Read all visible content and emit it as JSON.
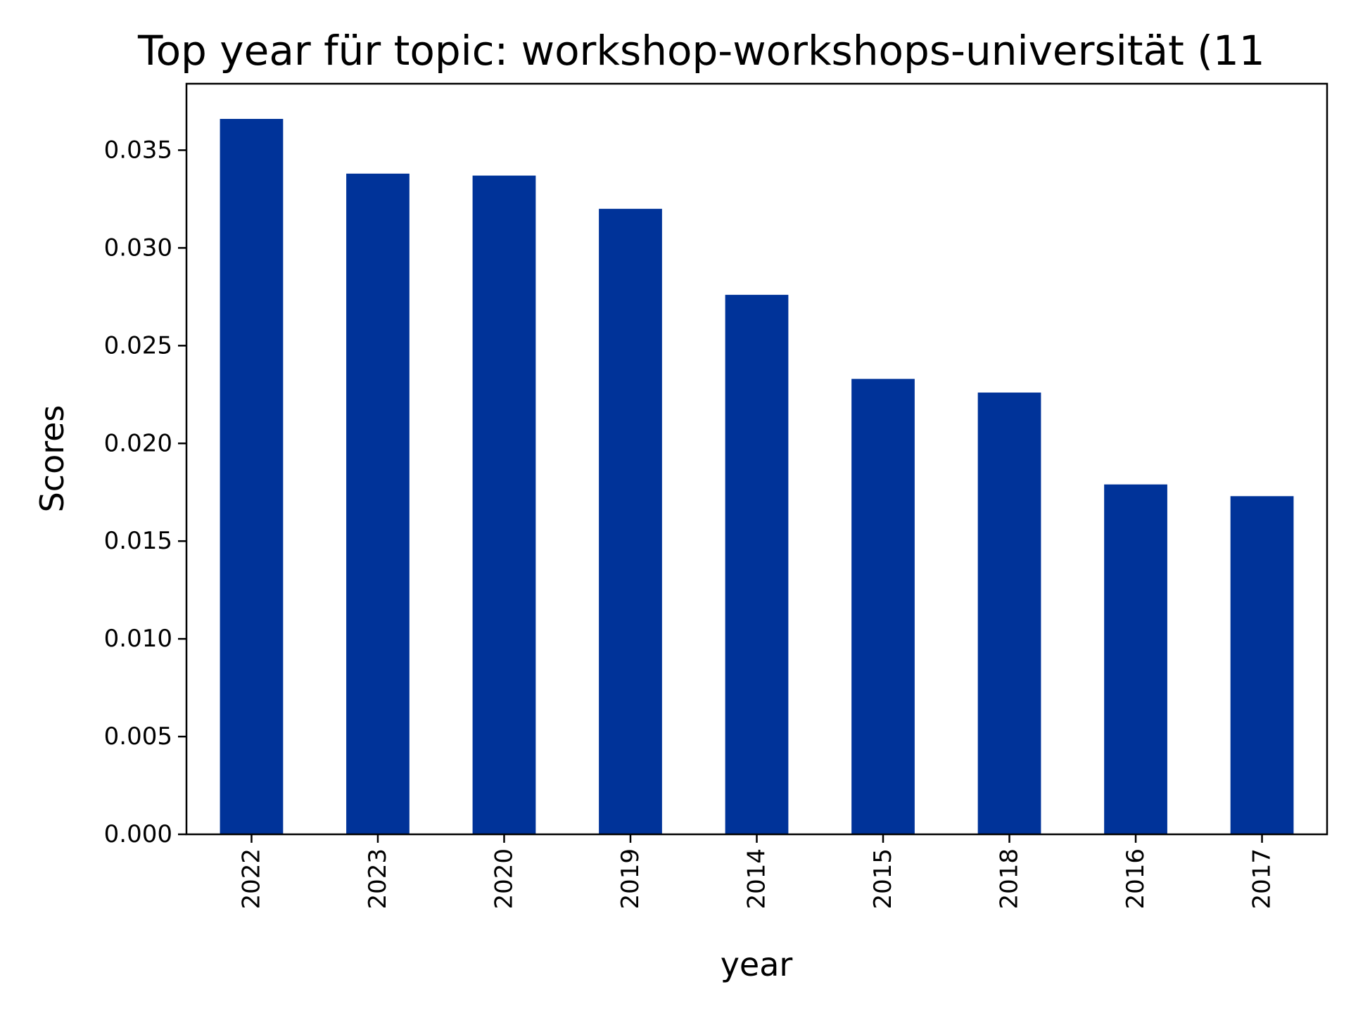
{
  "chart_data": {
    "type": "bar",
    "title": "Top year für topic: workshop-workshops-universität (11",
    "xlabel": "year",
    "ylabel": "Scores",
    "categories": [
      "2022",
      "2023",
      "2020",
      "2019",
      "2014",
      "2015",
      "2018",
      "2016",
      "2017"
    ],
    "values": [
      0.0366,
      0.0338,
      0.0337,
      0.032,
      0.0276,
      0.0233,
      0.0226,
      0.0179,
      0.0173
    ],
    "ylim": [
      0,
      0.0384
    ],
    "yticks": [
      0.0,
      0.005,
      0.01,
      0.015,
      0.02,
      0.025,
      0.03,
      0.035
    ],
    "ytick_labels": [
      "0.000",
      "0.005",
      "0.010",
      "0.015",
      "0.020",
      "0.025",
      "0.030",
      "0.035"
    ],
    "bar_color": "#003399",
    "grid": false,
    "legend": "none"
  }
}
